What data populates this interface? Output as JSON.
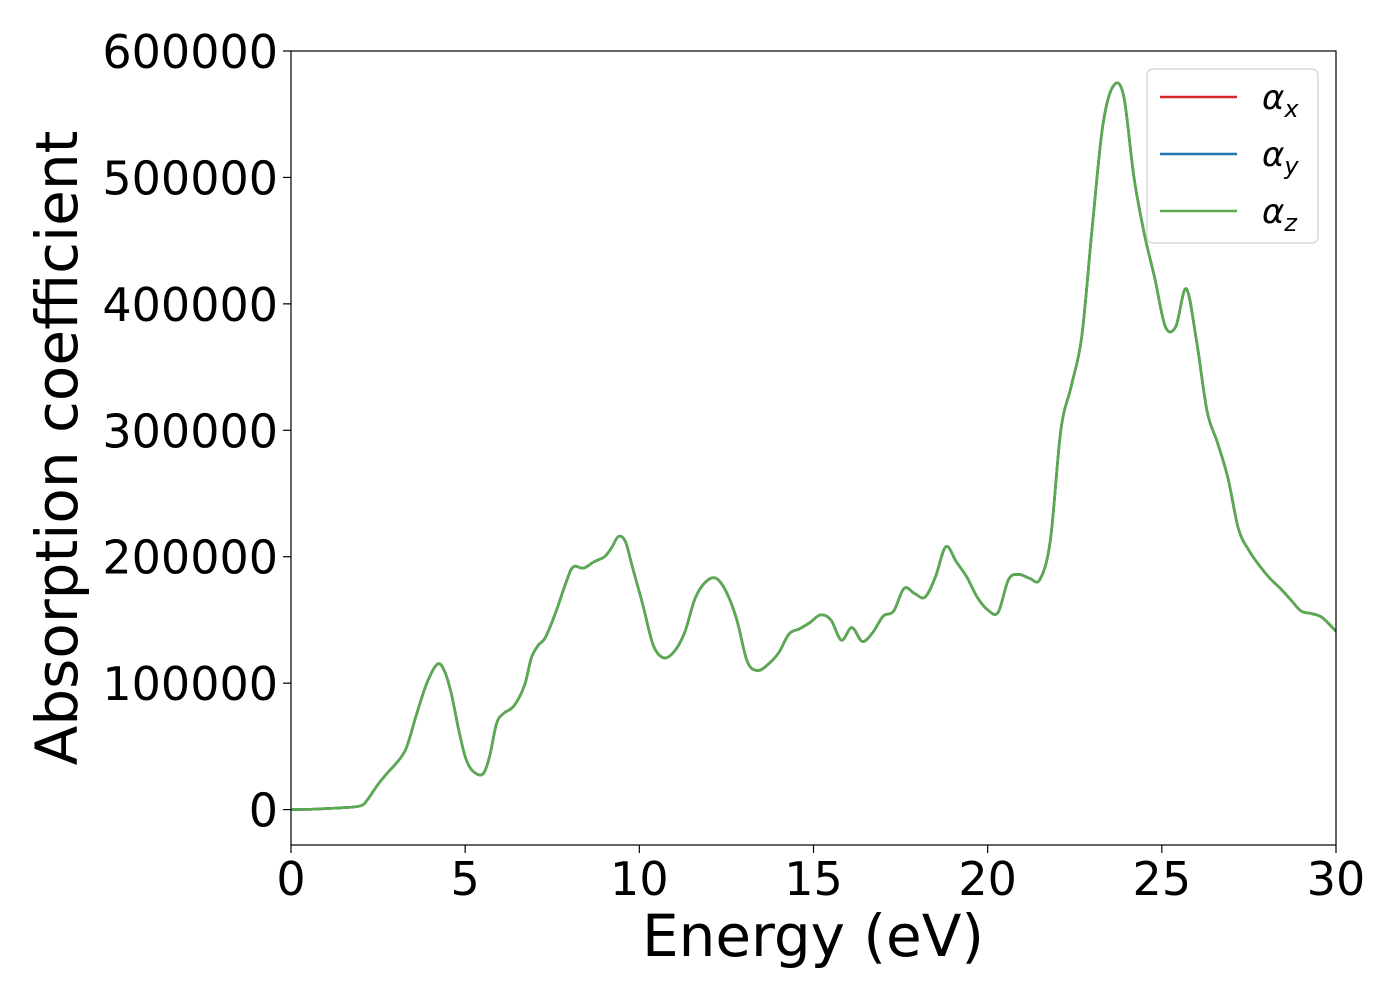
{
  "chart_data": {
    "type": "line",
    "xlabel": "Energy (eV)",
    "ylabel": "Absorption coefficient",
    "xlim": [
      0,
      30
    ],
    "ylim": [
      -28000,
      600000
    ],
    "x_ticks": [
      0,
      5,
      10,
      15,
      20,
      25,
      30
    ],
    "x_tick_labels": [
      "0",
      "5",
      "10",
      "15",
      "20",
      "25",
      "30"
    ],
    "y_ticks": [
      0,
      100000,
      200000,
      300000,
      400000,
      500000,
      600000
    ],
    "y_tick_labels": [
      "0",
      "100000",
      "200000",
      "300000",
      "400000",
      "500000",
      "600000"
    ],
    "grid": false,
    "legend_position": "top-right",
    "series": [
      {
        "name": "α",
        "subscript": "x",
        "color": "#d62728",
        "x": [
          0,
          0.5,
          1,
          1.5,
          2,
          2.2,
          2.5,
          2.8,
          3,
          3.3,
          3.6,
          3.9,
          4.2,
          4.4,
          4.6,
          4.8,
          5,
          5.2,
          5.5,
          5.7,
          5.9,
          6.1,
          6.4,
          6.7,
          6.9,
          7.1,
          7.3,
          7.6,
          7.9,
          8.1,
          8.4,
          8.7,
          9,
          9.2,
          9.4,
          9.6,
          9.8,
          10.1,
          10.4,
          10.7,
          11,
          11.3,
          11.6,
          11.9,
          12.2,
          12.5,
          12.8,
          13.1,
          13.4,
          13.7,
          14,
          14.3,
          14.6,
          14.9,
          15.2,
          15.5,
          15.8,
          16.1,
          16.4,
          16.7,
          17,
          17.3,
          17.6,
          17.9,
          18.2,
          18.5,
          18.8,
          19.1,
          19.4,
          19.7,
          20,
          20.3,
          20.6,
          20.9,
          21.2,
          21.5,
          21.8,
          22.1,
          22.4,
          22.7,
          23,
          23.3,
          23.6,
          23.9,
          24.2,
          24.5,
          24.8,
          25.1,
          25.4,
          25.7,
          26,
          26.3,
          26.6,
          26.9,
          27.2,
          27.5,
          27.8,
          28.1,
          28.4,
          28.7,
          29,
          29.3,
          29.6,
          30
        ],
        "values": [
          0,
          200,
          800,
          1500,
          3000,
          8000,
          20000,
          30000,
          36000,
          48000,
          75000,
          100000,
          115000,
          110000,
          92000,
          65000,
          42000,
          31000,
          28000,
          42000,
          68000,
          76000,
          82000,
          98000,
          120000,
          130000,
          136000,
          156000,
          180000,
          192000,
          191000,
          196000,
          200000,
          207000,
          216000,
          212000,
          192000,
          162000,
          130000,
          120000,
          125000,
          140000,
          167000,
          180000,
          183000,
          172000,
          150000,
          117000,
          110000,
          115000,
          124000,
          139000,
          143000,
          148000,
          154000,
          150000,
          134000,
          144000,
          133000,
          140000,
          153000,
          157000,
          175000,
          171000,
          168000,
          184000,
          208000,
          196000,
          184000,
          168000,
          158000,
          156000,
          182000,
          186000,
          183000,
          182000,
          213000,
          300000,
          335000,
          374000,
          460000,
          540000,
          572000,
          565000,
          500000,
          455000,
          420000,
          382000,
          382000,
          412000,
          370000,
          315000,
          290000,
          262000,
          222000,
          205000,
          193000,
          183000,
          175000,
          166000,
          157000,
          155000,
          152000,
          141000
        ]
      },
      {
        "name": "α",
        "subscript": "y",
        "color": "#1f77b4",
        "x": [
          0,
          0.5,
          1,
          1.5,
          2,
          2.2,
          2.5,
          2.8,
          3,
          3.3,
          3.6,
          3.9,
          4.2,
          4.4,
          4.6,
          4.8,
          5,
          5.2,
          5.5,
          5.7,
          5.9,
          6.1,
          6.4,
          6.7,
          6.9,
          7.1,
          7.3,
          7.6,
          7.9,
          8.1,
          8.4,
          8.7,
          9,
          9.2,
          9.4,
          9.6,
          9.8,
          10.1,
          10.4,
          10.7,
          11,
          11.3,
          11.6,
          11.9,
          12.2,
          12.5,
          12.8,
          13.1,
          13.4,
          13.7,
          14,
          14.3,
          14.6,
          14.9,
          15.2,
          15.5,
          15.8,
          16.1,
          16.4,
          16.7,
          17,
          17.3,
          17.6,
          17.9,
          18.2,
          18.5,
          18.8,
          19.1,
          19.4,
          19.7,
          20,
          20.3,
          20.6,
          20.9,
          21.2,
          21.5,
          21.8,
          22.1,
          22.4,
          22.7,
          23,
          23.3,
          23.6,
          23.9,
          24.2,
          24.5,
          24.8,
          25.1,
          25.4,
          25.7,
          26,
          26.3,
          26.6,
          26.9,
          27.2,
          27.5,
          27.8,
          28.1,
          28.4,
          28.7,
          29,
          29.3,
          29.6,
          30
        ],
        "values": [
          0,
          200,
          800,
          1500,
          3000,
          8000,
          20000,
          30000,
          36000,
          48000,
          75000,
          100000,
          115000,
          110000,
          92000,
          65000,
          42000,
          31000,
          28000,
          42000,
          68000,
          76000,
          82000,
          98000,
          120000,
          130000,
          136000,
          156000,
          180000,
          192000,
          191000,
          196000,
          200000,
          207000,
          216000,
          212000,
          192000,
          162000,
          130000,
          120000,
          125000,
          140000,
          167000,
          180000,
          183000,
          172000,
          150000,
          117000,
          110000,
          115000,
          124000,
          139000,
          143000,
          148000,
          154000,
          150000,
          134000,
          144000,
          133000,
          140000,
          153000,
          157000,
          175000,
          171000,
          168000,
          184000,
          208000,
          196000,
          184000,
          168000,
          158000,
          156000,
          182000,
          186000,
          183000,
          182000,
          213000,
          300000,
          335000,
          374000,
          460000,
          540000,
          572000,
          565000,
          500000,
          455000,
          420000,
          382000,
          382000,
          412000,
          370000,
          315000,
          290000,
          262000,
          222000,
          205000,
          193000,
          183000,
          175000,
          166000,
          157000,
          155000,
          152000,
          141000
        ]
      },
      {
        "name": "α",
        "subscript": "z",
        "color": "#5aab4e",
        "x": [
          0,
          0.5,
          1,
          1.5,
          2,
          2.2,
          2.5,
          2.8,
          3,
          3.3,
          3.6,
          3.9,
          4.2,
          4.4,
          4.6,
          4.8,
          5,
          5.2,
          5.5,
          5.7,
          5.9,
          6.1,
          6.4,
          6.7,
          6.9,
          7.1,
          7.3,
          7.6,
          7.9,
          8.1,
          8.4,
          8.7,
          9,
          9.2,
          9.4,
          9.6,
          9.8,
          10.1,
          10.4,
          10.7,
          11,
          11.3,
          11.6,
          11.9,
          12.2,
          12.5,
          12.8,
          13.1,
          13.4,
          13.7,
          14,
          14.3,
          14.6,
          14.9,
          15.2,
          15.5,
          15.8,
          16.1,
          16.4,
          16.7,
          17,
          17.3,
          17.6,
          17.9,
          18.2,
          18.5,
          18.8,
          19.1,
          19.4,
          19.7,
          20,
          20.3,
          20.6,
          20.9,
          21.2,
          21.5,
          21.8,
          22.1,
          22.4,
          22.7,
          23,
          23.3,
          23.6,
          23.9,
          24.2,
          24.5,
          24.8,
          25.1,
          25.4,
          25.7,
          26,
          26.3,
          26.6,
          26.9,
          27.2,
          27.5,
          27.8,
          28.1,
          28.4,
          28.7,
          29,
          29.3,
          29.6,
          30
        ],
        "values": [
          0,
          200,
          800,
          1500,
          3000,
          8000,
          20000,
          30000,
          36000,
          48000,
          75000,
          100000,
          115000,
          110000,
          92000,
          65000,
          42000,
          31000,
          28000,
          42000,
          68000,
          76000,
          82000,
          98000,
          120000,
          130000,
          136000,
          156000,
          180000,
          192000,
          191000,
          196000,
          200000,
          207000,
          216000,
          212000,
          192000,
          162000,
          130000,
          120000,
          125000,
          140000,
          167000,
          180000,
          183000,
          172000,
          150000,
          117000,
          110000,
          115000,
          124000,
          139000,
          143000,
          148000,
          154000,
          150000,
          134000,
          144000,
          133000,
          140000,
          153000,
          157000,
          175000,
          171000,
          168000,
          184000,
          208000,
          196000,
          184000,
          168000,
          158000,
          156000,
          182000,
          186000,
          183000,
          182000,
          213000,
          300000,
          335000,
          374000,
          460000,
          540000,
          572000,
          565000,
          500000,
          455000,
          420000,
          382000,
          382000,
          412000,
          370000,
          315000,
          290000,
          262000,
          222000,
          205000,
          193000,
          183000,
          175000,
          166000,
          157000,
          155000,
          152000,
          141000
        ]
      }
    ]
  }
}
